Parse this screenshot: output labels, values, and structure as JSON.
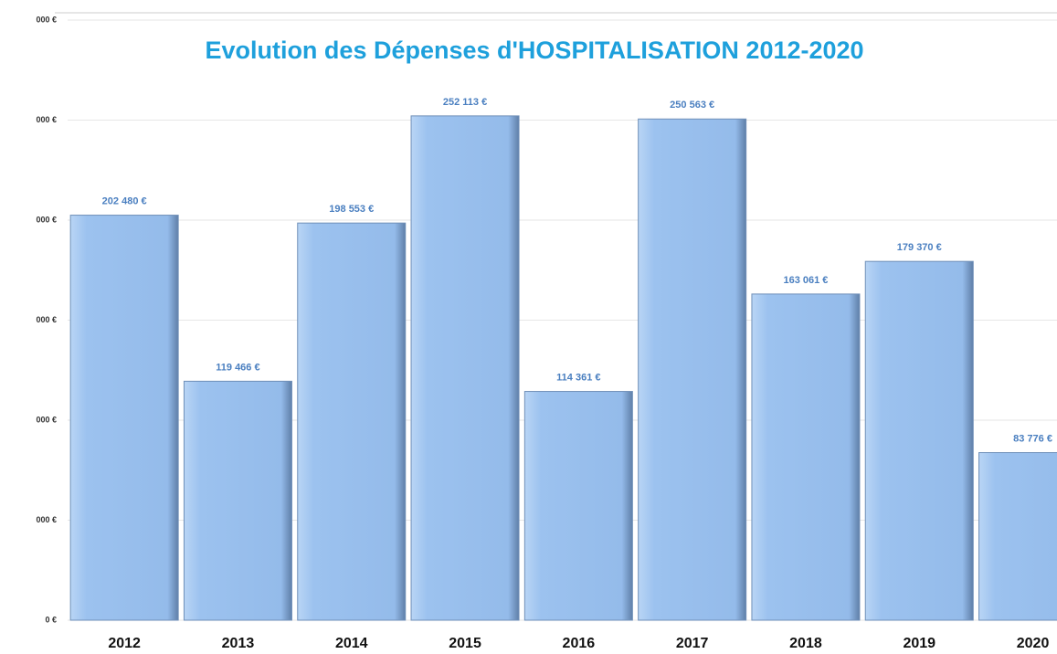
{
  "chart_data": {
    "type": "bar",
    "title": "Evolution des Dépenses d'HOSPITALISATION 2012-2020",
    "categories": [
      "2012",
      "2013",
      "2014",
      "2015",
      "2016",
      "2017",
      "2018",
      "2019",
      "2020"
    ],
    "values": [
      202480,
      119466,
      198553,
      252113,
      114361,
      250563,
      163061,
      179370,
      83776
    ],
    "value_labels": [
      "202 480 €",
      "119 466 €",
      "198 553 €",
      "252 113 €",
      "114 361 €",
      "250 563 €",
      "163 061 €",
      "179 370 €",
      "83 776 €"
    ],
    "color": "#9cc2ef",
    "ylim": [
      0,
      300000
    ],
    "yticks": [
      {
        "value": 0,
        "label": "0 €"
      },
      {
        "value": 50000,
        "label": "000 €"
      },
      {
        "value": 100000,
        "label": "000 €"
      },
      {
        "value": 150000,
        "label": "000 €"
      },
      {
        "value": 200000,
        "label": "000 €"
      },
      {
        "value": 250000,
        "label": "000 €"
      },
      {
        "value": 300000,
        "label": "000 €"
      }
    ],
    "grid": true
  }
}
